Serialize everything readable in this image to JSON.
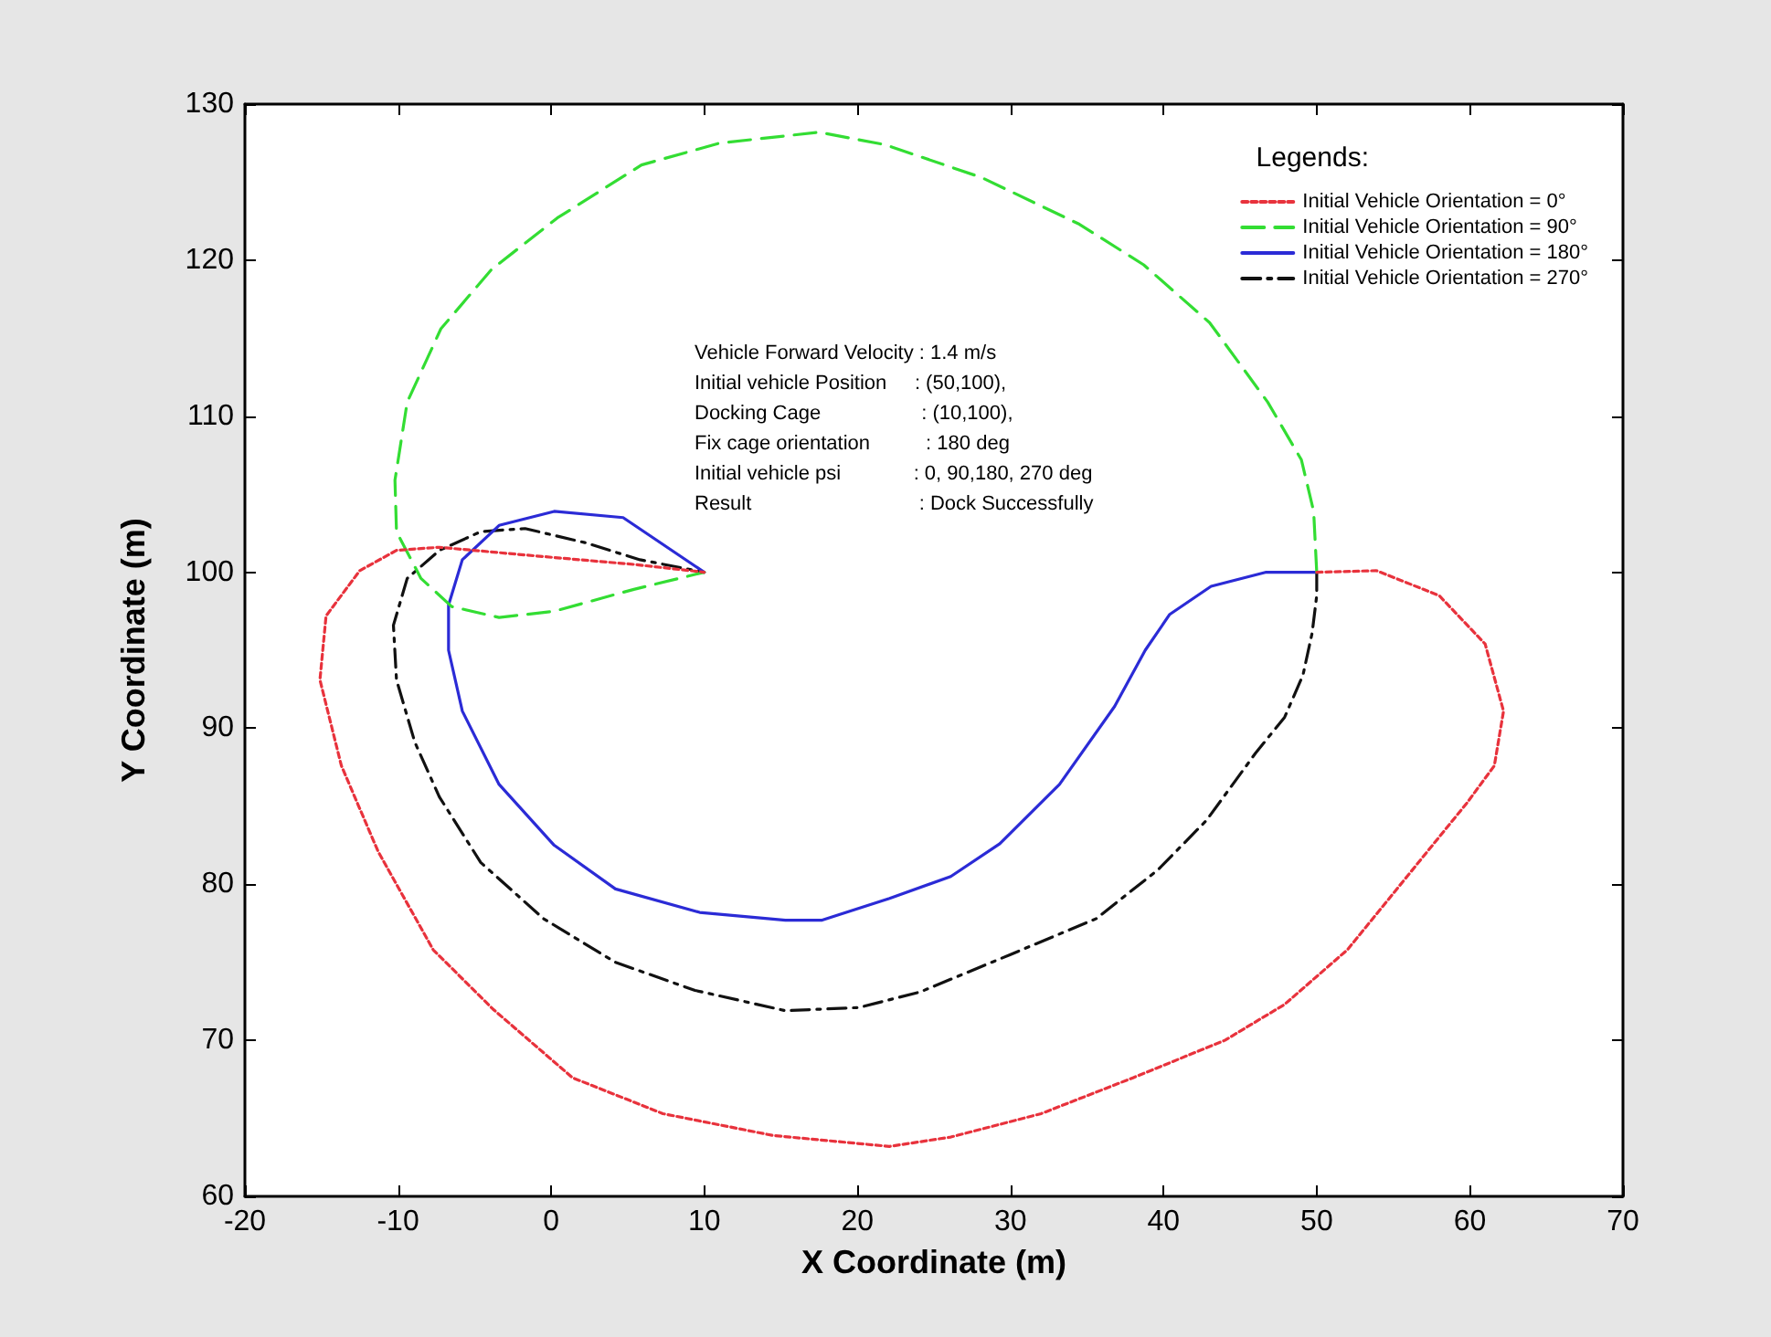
{
  "chart_data": {
    "type": "line",
    "xlabel": "X Coordinate (m)",
    "ylabel": "Y Coordinate (m)",
    "legend_title": "Legends:",
    "xlim": [
      -20,
      70
    ],
    "xticks": [
      -20,
      -10,
      0,
      10,
      20,
      30,
      40,
      50,
      60,
      70
    ],
    "ylim": [
      60,
      130
    ],
    "yticks": [
      60,
      70,
      80,
      90,
      100,
      110,
      120,
      130
    ],
    "grid": false,
    "legend": "top right",
    "marker": "none",
    "annotations": [
      "Vehicle Forward Velocity : 1.4 m/s",
      "Initial vehicle Position     : (50,100),",
      "Docking Cage                  : (10,100),",
      "Fix cage orientation          : 180 deg",
      "Initial vehicle psi             : 0, 90,180, 270 deg",
      "Result                              : Dock Successfully"
    ],
    "series": [
      {
        "name": "Initial Vehicle Orientation = 0°",
        "color": "#e8323c",
        "line_style": "dotted",
        "x": [
          50,
          53.9,
          58,
          61,
          62.2,
          61.6,
          59.8,
          55.9,
          52,
          47.9,
          44,
          38,
          32,
          26.1,
          22.1,
          14.5,
          7.3,
          1.4,
          -3.8,
          -7.7,
          -11.3,
          -13.7,
          -15.1,
          -14.7,
          -12.5,
          -10.1,
          -7.3,
          -0.5,
          5.4,
          10
        ],
        "values": [
          100,
          100.1,
          98.5,
          95.4,
          91.1,
          87.6,
          85.2,
          80.5,
          75.8,
          72.3,
          70,
          67.6,
          65.3,
          63.8,
          63.2,
          63.9,
          65.3,
          67.6,
          72,
          75.8,
          82.1,
          87.6,
          93.1,
          97.2,
          100.1,
          101.4,
          101.6,
          101,
          100.5,
          100
        ]
      },
      {
        "name": "Initial Vehicle Orientation = 90°",
        "color": "#33dd33",
        "line_style": "dashed",
        "x": [
          50,
          49.8,
          49,
          46.8,
          43,
          38.7,
          34.5,
          28.1,
          21.8,
          17.5,
          11,
          5.9,
          0.4,
          -3.9,
          -7.2,
          -9.4,
          -10.2,
          -10.1,
          -8.5,
          -6.5,
          -3.4,
          0.2,
          5.4,
          10
        ],
        "values": [
          100,
          103.9,
          107.2,
          110.9,
          116,
          119.7,
          122.3,
          125.3,
          127.4,
          128.2,
          127.5,
          126.1,
          122.7,
          119.4,
          115.6,
          110.9,
          105.9,
          102.6,
          99.6,
          97.8,
          97.1,
          97.5,
          98.9,
          100
        ]
      },
      {
        "name": "Initial Vehicle Orientation = 180°",
        "color": "#2b2bd6",
        "line_style": "solid",
        "x": [
          50,
          46.7,
          43.1,
          40.4,
          38.8,
          36.8,
          33.2,
          29.3,
          26.1,
          22.1,
          17.7,
          15.3,
          9.7,
          4.2,
          0.2,
          -3.4,
          -5.8,
          -6.7,
          -6.7,
          -5.8,
          -3.4,
          0.2,
          4.7,
          10
        ],
        "values": [
          100,
          100,
          99.1,
          97.3,
          95,
          91.4,
          86.4,
          82.6,
          80.5,
          79.1,
          77.7,
          77.7,
          78.2,
          79.7,
          82.5,
          86.4,
          91.1,
          95,
          97.9,
          100.8,
          103,
          103.9,
          103.5,
          100
        ]
      },
      {
        "name": "Initial Vehicle Orientation = 270°",
        "color": "#111111",
        "line_style": "dashdot",
        "x": [
          50,
          50,
          49.7,
          49.1,
          47.9,
          46,
          42.8,
          39.6,
          35.6,
          30,
          24.1,
          20.1,
          15.3,
          9.4,
          4.2,
          -0.5,
          -4.6,
          -7.3,
          -8.9,
          -10.1,
          -10.3,
          -9.4,
          -7.3,
          -4.6,
          -1.7,
          2.2,
          5.8,
          10
        ],
        "values": [
          100,
          98.5,
          96.1,
          93.4,
          90.7,
          88.4,
          84.1,
          80.9,
          77.8,
          75.5,
          73.1,
          72.1,
          71.9,
          73.2,
          75,
          77.8,
          81.4,
          85.6,
          89.1,
          93.1,
          96.6,
          99.6,
          101.4,
          102.6,
          102.8,
          101.9,
          100.8,
          100
        ]
      }
    ]
  }
}
